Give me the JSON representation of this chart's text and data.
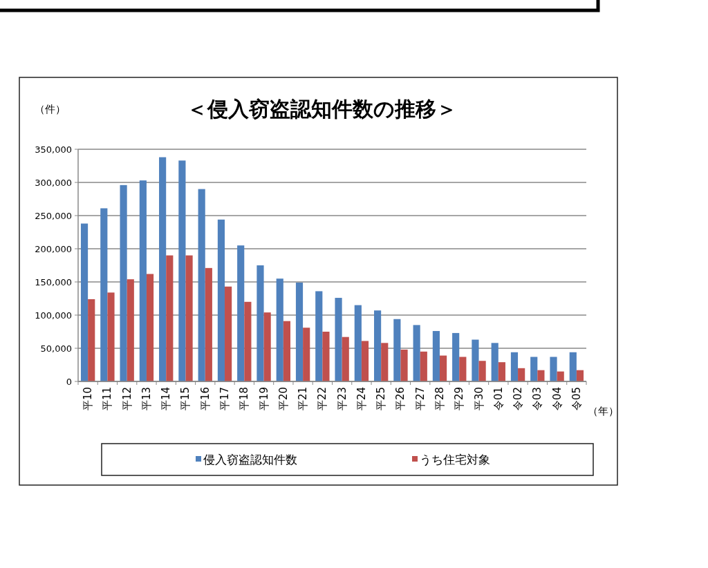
{
  "chart_data": {
    "type": "bar",
    "title": "＜侵入窃盗認知件数の推移＞",
    "ylabel": "（件）",
    "xlabel": "（年）",
    "categories": [
      "平10",
      "平11",
      "平12",
      "平13",
      "平14",
      "平15",
      "平16",
      "平17",
      "平18",
      "平19",
      "平20",
      "平21",
      "平22",
      "平23",
      "平24",
      "平25",
      "平26",
      "平27",
      "平28",
      "平29",
      "平30",
      "令01",
      "令02",
      "令03",
      "令04",
      "令05"
    ],
    "series": [
      {
        "name": "侵入窃盗認知件数",
        "color": "#4f81bd",
        "values": [
          238000,
          261000,
          296000,
          303000,
          338000,
          333000,
          290000,
          244000,
          205000,
          175000,
          155000,
          149000,
          136000,
          126000,
          115000,
          107000,
          94000,
          85000,
          76000,
          73000,
          63000,
          58000,
          44000,
          37000,
          37000,
          44000
        ]
      },
      {
        "name": "うち住宅対象",
        "color": "#c0504d",
        "values": [
          124000,
          134000,
          154000,
          162000,
          190000,
          190000,
          171000,
          143000,
          120000,
          104000,
          91000,
          81000,
          75000,
          67000,
          61000,
          58000,
          48000,
          45000,
          39000,
          37000,
          31000,
          29000,
          20000,
          17000,
          15000,
          17000
        ]
      }
    ],
    "ylim": [
      0,
      350000
    ],
    "yticks": [
      {
        "value": 0,
        "label": "0"
      },
      {
        "value": 50000,
        "label": "50,000"
      },
      {
        "value": 100000,
        "label": "100,000"
      },
      {
        "value": 150000,
        "label": "150,000"
      },
      {
        "value": 200000,
        "label": "200,000"
      },
      {
        "value": 250000,
        "label": "250,000"
      },
      {
        "value": 300000,
        "label": "300,000"
      },
      {
        "value": 350000,
        "label": "350,000"
      }
    ],
    "grid": "y",
    "legend": "bottom"
  }
}
